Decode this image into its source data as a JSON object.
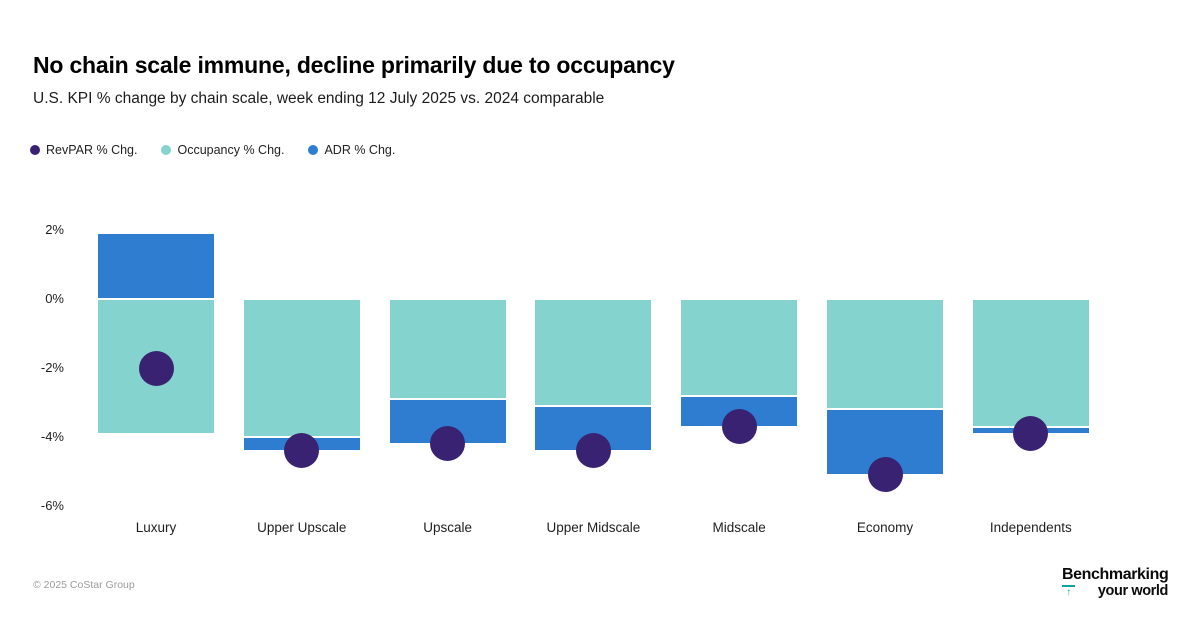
{
  "chart_data": {
    "type": "bar",
    "stacked": true,
    "title": "No chain scale immune, decline primarily due to occupancy",
    "subtitle": "U.S. KPI % change by chain scale, week ending 12 July 2025 vs. 2024 comparable",
    "categories": [
      "Luxury",
      "Upper Upscale",
      "Upscale",
      "Upper Midscale",
      "Midscale",
      "Economy",
      "Independents"
    ],
    "series": [
      {
        "name": "Occupancy % Chg.",
        "render": "bar",
        "color": "#85d3ce",
        "values": [
          -3.9,
          -4.0,
          -2.9,
          -3.1,
          -2.8,
          -3.2,
          -3.7
        ]
      },
      {
        "name": "ADR % Chg.",
        "render": "bar",
        "color": "#2e7dd1",
        "values": [
          1.9,
          -0.4,
          -1.3,
          -1.3,
          -0.9,
          -1.9,
          -0.2
        ]
      },
      {
        "name": "RevPAR % Chg.",
        "render": "point",
        "color": "#3a2272",
        "values": [
          -2.0,
          -4.4,
          -4.2,
          -4.4,
          -3.7,
          -5.1,
          -3.9
        ]
      }
    ],
    "xlabel": "",
    "ylabel": "",
    "ylim": [
      -6.6,
      2.4
    ],
    "yticks": [
      2,
      0,
      -2,
      -4,
      -6
    ],
    "ytick_labels": [
      "2%",
      "0%",
      "-2%",
      "-4%",
      "-6%"
    ],
    "grid": false,
    "legend_position": "top-left"
  },
  "legend": [
    {
      "label": "RevPAR % Chg.",
      "color": "#3a2272",
      "icon": "circle-swatch-icon"
    },
    {
      "label": "Occupancy % Chg.",
      "color": "#85d3ce",
      "icon": "circle-swatch-icon"
    },
    {
      "label": "ADR % Chg.",
      "color": "#2e7dd1",
      "icon": "circle-swatch-icon"
    }
  ],
  "footer": {
    "copyright": "© 2025 CoStar Group",
    "logo": {
      "line1": "Benchmarking",
      "line2": "your world",
      "icon": "up-arrow-to-bar-icon",
      "icon_color": "#0fa3a0"
    }
  }
}
